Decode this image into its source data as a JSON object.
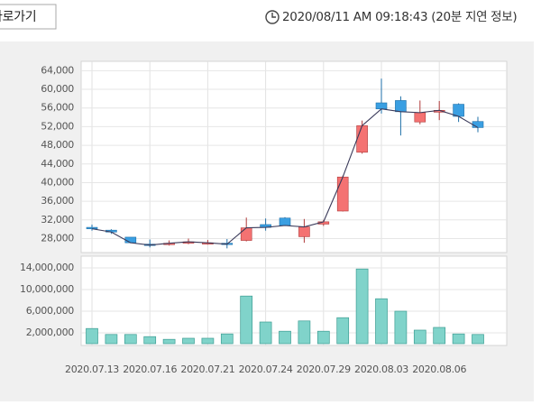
{
  "header": {
    "button": "바로가기",
    "timestamp": "2020/08/11 AM 09:18:43 (20분 지연 정보)"
  },
  "chart_data": [
    {
      "type": "candlestick",
      "up_color": "#f47272",
      "down_color": "#3a9fe2",
      "open": [
        30400,
        29800,
        28300,
        26800,
        26700,
        27000,
        26900,
        27000,
        27600,
        31000,
        32400,
        28400,
        31100,
        33900,
        46500,
        57100,
        57600,
        53000,
        55100,
        56800,
        53100
      ],
      "high": [
        31000,
        30000,
        28300,
        27800,
        27600,
        28000,
        27700,
        27900,
        32500,
        32300,
        32600,
        32200,
        32000,
        41500,
        53300,
        62300,
        58500,
        57600,
        57500,
        57000,
        54100
      ],
      "low": [
        29700,
        29000,
        27000,
        26100,
        26500,
        26800,
        26700,
        25900,
        27400,
        29700,
        30700,
        27100,
        30700,
        33800,
        46200,
        54800,
        50100,
        52500,
        53400,
        53000,
        50800
      ],
      "close": [
        30100,
        29400,
        27100,
        26600,
        27000,
        27300,
        27100,
        26800,
        30300,
        30400,
        30800,
        30500,
        31600,
        41200,
        52200,
        55800,
        55200,
        55000,
        55500,
        54200,
        51800
      ],
      "ylim": [
        25000,
        66000
      ],
      "yticks": [
        {
          "value": 28000,
          "label": "28,000"
        },
        {
          "value": 32000,
          "label": "32,000"
        },
        {
          "value": 36000,
          "label": "36,000"
        },
        {
          "value": 40000,
          "label": "40,000"
        },
        {
          "value": 44000,
          "label": "44,000"
        },
        {
          "value": 48000,
          "label": "48,000"
        },
        {
          "value": 52000,
          "label": "52,000"
        },
        {
          "value": 56000,
          "label": "56,000"
        },
        {
          "value": 60000,
          "label": "60,000"
        },
        {
          "value": 64000,
          "label": "64,000"
        }
      ],
      "grid": true
    },
    {
      "type": "bar",
      "color": "#80d3ca",
      "categories": [
        "2020.07.13",
        null,
        null,
        "2020.07.16",
        null,
        null,
        "2020.07.21",
        null,
        null,
        "2020.07.24",
        null,
        null,
        "2020.07.29",
        null,
        null,
        "2020.08.03",
        null,
        null,
        "2020.08.06",
        null,
        null
      ],
      "values": [
        2800000,
        1700000,
        1700000,
        1300000,
        800000,
        1000000,
        1000000,
        1800000,
        8800000,
        4000000,
        2300000,
        4200000,
        2300000,
        4800000,
        13800000,
        8300000,
        6000000,
        2500000,
        3000000,
        1800000,
        1700000
      ],
      "ylim": [
        0,
        16000000
      ],
      "yticks": [
        {
          "value": 2000000,
          "label": "2,000,000"
        },
        {
          "value": 6000000,
          "label": "6,000,000"
        },
        {
          "value": 10000000,
          "label": "10,000,000"
        },
        {
          "value": 14000000,
          "label": "14,000,000"
        }
      ],
      "grid": true
    }
  ]
}
